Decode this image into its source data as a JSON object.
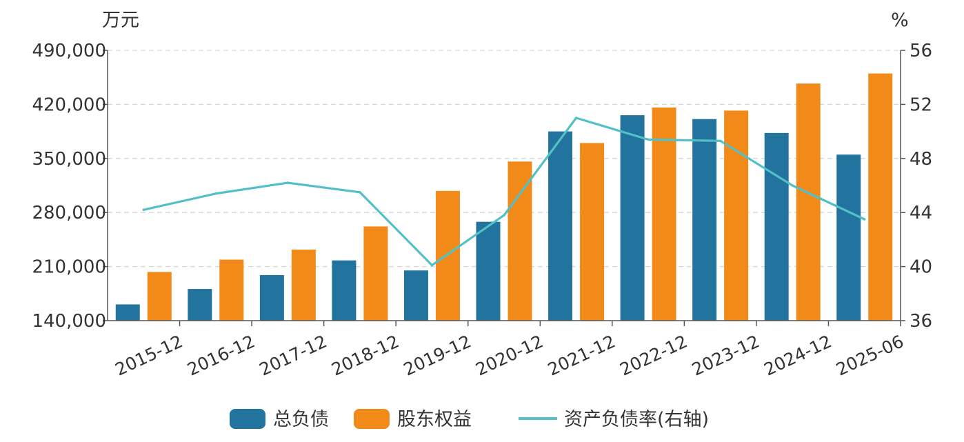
{
  "chart_data": {
    "type": "bar",
    "categories": [
      "2015-12",
      "2016-12",
      "2017-12",
      "2018-12",
      "2019-12",
      "2020-12",
      "2021-12",
      "2022-12",
      "2023-12",
      "2024-12",
      "2025-06"
    ],
    "series": [
      {
        "name": "总负债",
        "kind": "bar",
        "axis": "left",
        "color": "#22739e",
        "values": [
          161000,
          181000,
          199000,
          218000,
          205000,
          268000,
          385000,
          406000,
          401000,
          383000,
          355000
        ]
      },
      {
        "name": "股东权益",
        "kind": "bar",
        "axis": "left",
        "color": "#f28a1a",
        "values": [
          203000,
          219000,
          232000,
          262000,
          308000,
          346000,
          370000,
          416000,
          412000,
          447000,
          460000
        ]
      },
      {
        "name": "资产负债率(右轴)",
        "kind": "line",
        "axis": "right",
        "color": "#52c0c6",
        "values": [
          44.2,
          45.4,
          46.2,
          45.5,
          40.1,
          43.8,
          51.0,
          49.4,
          49.3,
          46.0,
          43.5
        ]
      }
    ],
    "left_axis": {
      "unit": "万元",
      "ylim": [
        140000,
        490000
      ],
      "ticks": [
        "140,000",
        "210,000",
        "280,000",
        "350,000",
        "420,000",
        "490,000"
      ]
    },
    "right_axis": {
      "unit": "%",
      "ylim": [
        36,
        56
      ],
      "ticks": [
        "36",
        "40",
        "44",
        "48",
        "52",
        "56"
      ]
    },
    "grid": true,
    "legend_position": "bottom"
  }
}
